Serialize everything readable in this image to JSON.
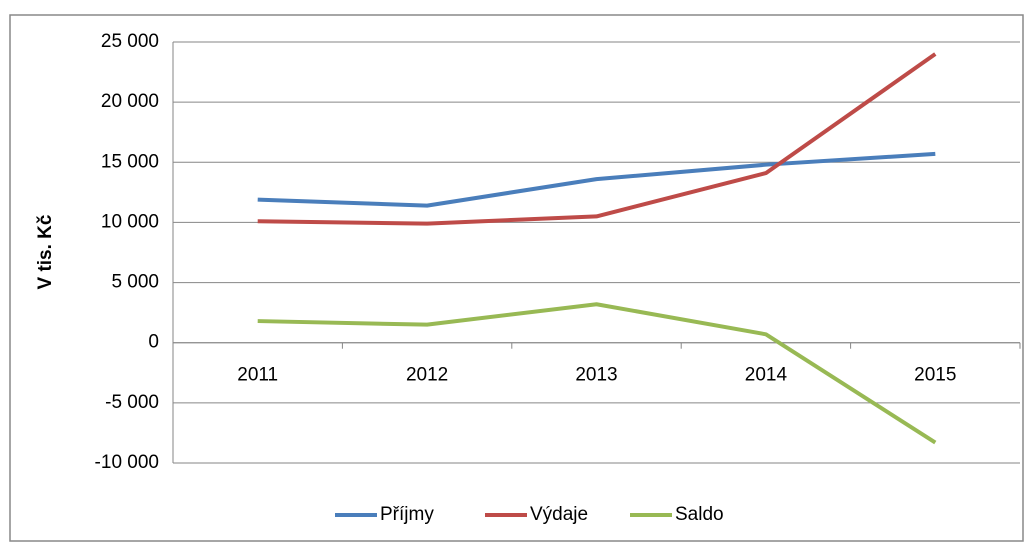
{
  "chart_data": {
    "type": "line",
    "y_label": "V tis. Kč",
    "categories": [
      "2011",
      "2012",
      "2013",
      "2014",
      "2015"
    ],
    "series": [
      {
        "name": "Příjmy",
        "color": "#4a7ebb",
        "values": [
          11900,
          11400,
          13600,
          14800,
          15700
        ]
      },
      {
        "name": "Výdaje",
        "color": "#be4b48",
        "values": [
          10100,
          9900,
          10500,
          14100,
          24000
        ]
      },
      {
        "name": "Saldo",
        "color": "#98b954",
        "values": [
          1800,
          1500,
          3200,
          700,
          -8300
        ]
      }
    ],
    "ylim": [
      -10000,
      25000
    ],
    "yticks": [
      {
        "value": -10000,
        "label": "-10 000"
      },
      {
        "value": -5000,
        "label": "-5 000"
      },
      0,
      {
        "value": 5000,
        "label": "5 000"
      },
      {
        "value": 10000,
        "label": "10 000"
      },
      {
        "value": 15000,
        "label": "15 000"
      },
      {
        "value": 20000,
        "label": "20 000"
      },
      {
        "value": 25000,
        "label": "25 000"
      }
    ],
    "grid": true,
    "legend": "bottom"
  }
}
